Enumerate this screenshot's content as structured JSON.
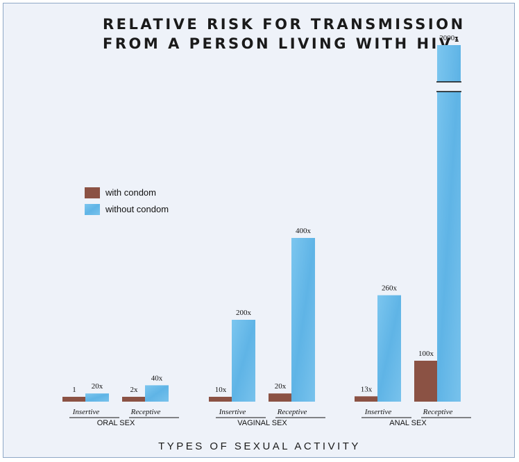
{
  "chart_data": {
    "type": "bar",
    "title_line1": "RELATIVE RISK FOR TRANSMISSION",
    "title_line2": "FROM A PERSON LIVING WITH HIV",
    "title_superscript": "1",
    "xlabel": "TYPES OF SEXUAL ACTIVITY",
    "legend": [
      {
        "name": "with condom",
        "color": "#8b5244"
      },
      {
        "name": "without condom",
        "color": "#6dbde8"
      }
    ],
    "groups": [
      {
        "name": "ORAL SEX",
        "subgroups": [
          {
            "name": "Insertive",
            "with_condom": 1,
            "with_label": "1",
            "without_condom": 20,
            "without_label": "20x"
          },
          {
            "name": "Receptive",
            "with_condom": 2,
            "with_label": "2x",
            "without_condom": 40,
            "without_label": "40x"
          }
        ]
      },
      {
        "name": "VAGINAL SEX",
        "subgroups": [
          {
            "name": "Insertive",
            "with_condom": 10,
            "with_label": "10x",
            "without_condom": 200,
            "without_label": "200x"
          },
          {
            "name": "Receptive",
            "with_condom": 20,
            "with_label": "20x",
            "without_condom": 400,
            "without_label": "400x"
          }
        ]
      },
      {
        "name": "ANAL SEX",
        "subgroups": [
          {
            "name": "Insertive",
            "with_condom": 13,
            "with_label": "13x",
            "without_condom": 260,
            "without_label": "260x"
          },
          {
            "name": "Receptive",
            "with_condom": 100,
            "with_label": "100x",
            "without_condom": 2000,
            "without_label": "2000x"
          }
        ]
      }
    ],
    "axis_break": true,
    "grid": false
  }
}
